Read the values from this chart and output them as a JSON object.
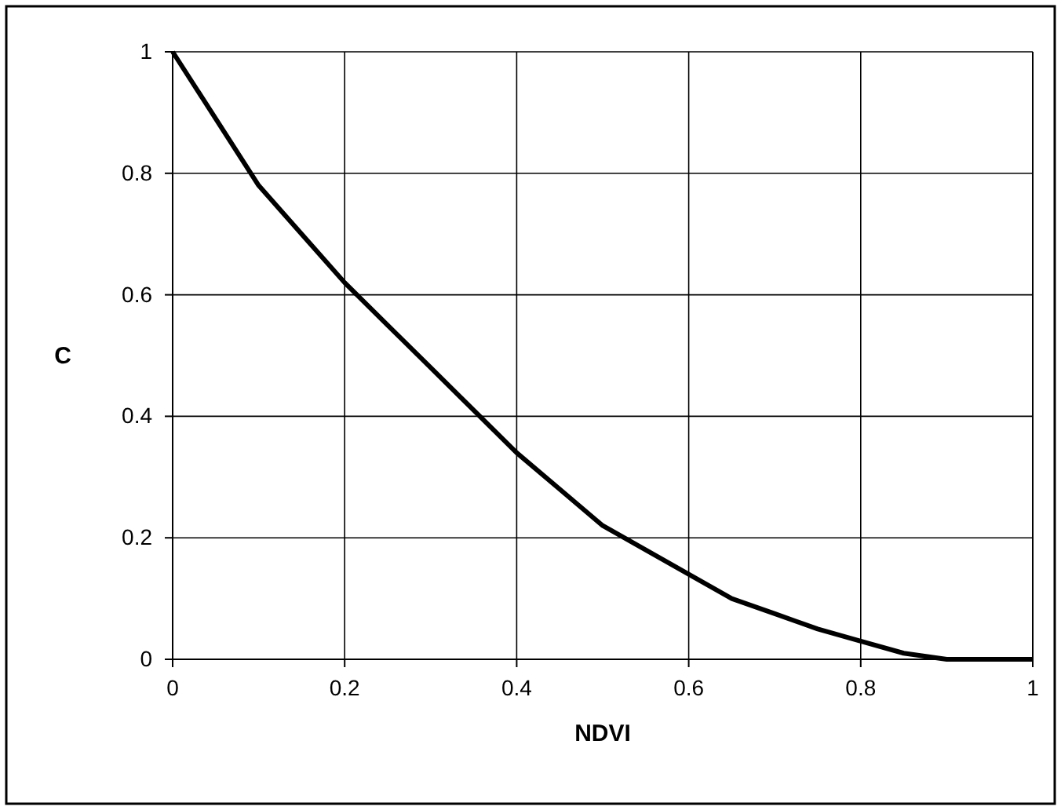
{
  "chart_data": {
    "type": "line",
    "xlabel": "NDVI",
    "ylabel": "C",
    "x": [
      0,
      0.05,
      0.1,
      0.15,
      0.2,
      0.25,
      0.3,
      0.35,
      0.4,
      0.45,
      0.5,
      0.55,
      0.6,
      0.65,
      0.7,
      0.75,
      0.8,
      0.85,
      0.9,
      0.95,
      1
    ],
    "series": [
      {
        "color": "#000000",
        "values": [
          1,
          0.89,
          0.78,
          0.7,
          0.62,
          0.55,
          0.48,
          0.41,
          0.34,
          0.28,
          0.22,
          0.18,
          0.14,
          0.1,
          0.075,
          0.05,
          0.03,
          0.01,
          0,
          0,
          0
        ]
      }
    ],
    "xlim": [
      0,
      1
    ],
    "ylim": [
      0,
      1
    ],
    "xticks": [
      0,
      0.2,
      0.4,
      0.6,
      0.8,
      1
    ],
    "yticks": [
      0,
      0.2,
      0.4,
      0.6,
      0.8,
      1
    ],
    "grid": true,
    "marker": "none",
    "line_style": "solid"
  }
}
